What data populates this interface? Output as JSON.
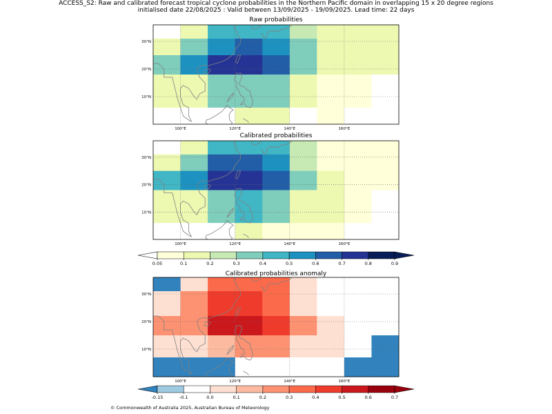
{
  "title": {
    "line1": "ACCESS_S2: Raw and calibrated forecast tropical cyclone probabilities in the Northern Pacific domain in overlapping 15 x 20 degree regions",
    "line2": "initialised date 22/08/2025 :  Valid between 13/09/2025 - 19/09/2025. Lead time: 22 days"
  },
  "copyright": "© Commonwealth of Australia 2025, Australian Bureau of Meteorology",
  "colors": {
    "coast": "#808080",
    "grid": "#666666",
    "prob_scale": [
      "#ffffff",
      "#ffffd9",
      "#edf8b1",
      "#c7e9b4",
      "#7fcdbb",
      "#41b6c4",
      "#1d91c0",
      "#225ea8",
      "#253494",
      "#081d58"
    ],
    "anom_scale": [
      "#3182bd",
      "#9ecae1",
      "#ffffff",
      "#fee0d2",
      "#fcbba1",
      "#fc9272",
      "#fb6a4a",
      "#ef3b2c",
      "#cb181d",
      "#99000d"
    ]
  },
  "chart_data": [
    {
      "type": "heatmap",
      "title": "Raw probabilities",
      "xlim": [
        90,
        180
      ],
      "ylim": [
        0,
        36
      ],
      "x_edges": [
        90,
        100,
        110,
        120,
        130,
        140,
        150,
        160,
        170,
        180
      ],
      "y_edges": [
        36,
        31,
        25,
        18,
        11,
        6,
        0
      ],
      "xticks": [
        100,
        120,
        140,
        160
      ],
      "xtick_labels": [
        "100°E",
        "120°E",
        "140°E",
        "160°E"
      ],
      "yticks": [
        10,
        20,
        30
      ],
      "ytick_labels": [
        "10°N",
        "20°N",
        "30°N"
      ],
      "grid": true,
      "values": [
        [
          0.0,
          0.12,
          0.4,
          0.4,
          0.4,
          0.22,
          0.12,
          0.12,
          0.12
        ],
        [
          0.12,
          0.3,
          0.5,
          0.62,
          0.5,
          0.3,
          0.12,
          0.12,
          0.12
        ],
        [
          0.3,
          0.55,
          0.75,
          0.75,
          0.62,
          0.3,
          0.12,
          0.12,
          0.12
        ],
        [
          0.12,
          0.12,
          0.3,
          0.3,
          0.3,
          0.12,
          0.07,
          0.07,
          0.0
        ],
        [
          0.12,
          0.12,
          0.3,
          0.3,
          0.3,
          0.12,
          0.07,
          0.07,
          0.0
        ],
        [
          0.0,
          0.0,
          0.0,
          0.12,
          0.12,
          0.0,
          0.07,
          0.0,
          0.0
        ]
      ]
    },
    {
      "type": "heatmap",
      "title": "Calibrated probabilities",
      "xlim": [
        90,
        180
      ],
      "ylim": [
        0,
        36
      ],
      "x_edges": [
        90,
        100,
        110,
        120,
        130,
        140,
        150,
        160,
        170,
        180
      ],
      "y_edges": [
        36,
        31,
        25,
        18,
        11,
        6,
        0
      ],
      "xticks": [
        100,
        120,
        140,
        160
      ],
      "xtick_labels": [
        "100°E",
        "120°E",
        "140°E",
        "160°E"
      ],
      "yticks": [
        10,
        20,
        30
      ],
      "ytick_labels": [
        "10°N",
        "20°N",
        "30°N"
      ],
      "grid": true,
      "values": [
        [
          0.0,
          0.12,
          0.4,
          0.4,
          0.4,
          0.22,
          0.07,
          0.07,
          0.07
        ],
        [
          0.12,
          0.3,
          0.62,
          0.62,
          0.5,
          0.22,
          0.07,
          0.07,
          0.07
        ],
        [
          0.4,
          0.5,
          0.75,
          0.75,
          0.62,
          0.3,
          0.12,
          0.07,
          0.07
        ],
        [
          0.12,
          0.12,
          0.3,
          0.4,
          0.3,
          0.12,
          0.12,
          0.07,
          0.0
        ],
        [
          0.12,
          0.12,
          0.3,
          0.4,
          0.3,
          0.12,
          0.12,
          0.07,
          0.0
        ],
        [
          0.0,
          0.0,
          0.0,
          0.12,
          0.07,
          0.07,
          0.07,
          0.0,
          0.0
        ]
      ]
    },
    {
      "type": "heatmap",
      "title": "Calibrated probabilities anomaly",
      "xlim": [
        90,
        180
      ],
      "ylim": [
        0,
        36
      ],
      "x_edges": [
        90,
        100,
        110,
        120,
        130,
        140,
        150,
        160,
        170,
        180
      ],
      "y_edges": [
        36,
        31,
        22,
        15,
        7,
        0
      ],
      "xticks": [
        100,
        120,
        140,
        160
      ],
      "xtick_labels": [
        "100°E",
        "120°E",
        "140°E",
        "160°E"
      ],
      "yticks": [
        10,
        20,
        30
      ],
      "ytick_labels": [
        "10°N",
        "20°N",
        "30°N"
      ],
      "grid": true,
      "values": [
        [
          -0.2,
          0.0,
          0.35,
          0.35,
          0.35,
          0.0,
          -0.1,
          -0.1,
          -0.1
        ],
        [
          0.0,
          0.2,
          0.45,
          0.45,
          0.35,
          0.05,
          -0.1,
          -0.1,
          -0.1
        ],
        [
          0.2,
          0.2,
          0.55,
          0.55,
          0.45,
          0.2,
          0.0,
          -0.1,
          -0.1
        ],
        [
          0.0,
          0.0,
          0.1,
          0.2,
          0.2,
          0.0,
          0.0,
          -0.1,
          -0.2
        ],
        [
          -0.2,
          -0.2,
          -0.2,
          -0.1,
          -0.1,
          -0.1,
          -0.1,
          -0.2,
          -0.2
        ]
      ]
    }
  ],
  "colorbars": {
    "prob": {
      "ticks": [
        "0.05",
        "0.1",
        "0.2",
        "0.3",
        "0.4",
        "0.5",
        "0.6",
        "0.7",
        "0.8",
        "0.9"
      ]
    },
    "anom": {
      "ticks": [
        "-0.15",
        "-0.1",
        "0.0",
        "0.1",
        "0.2",
        "0.3",
        "0.4",
        "0.5",
        "0.6",
        "0.7"
      ]
    }
  }
}
